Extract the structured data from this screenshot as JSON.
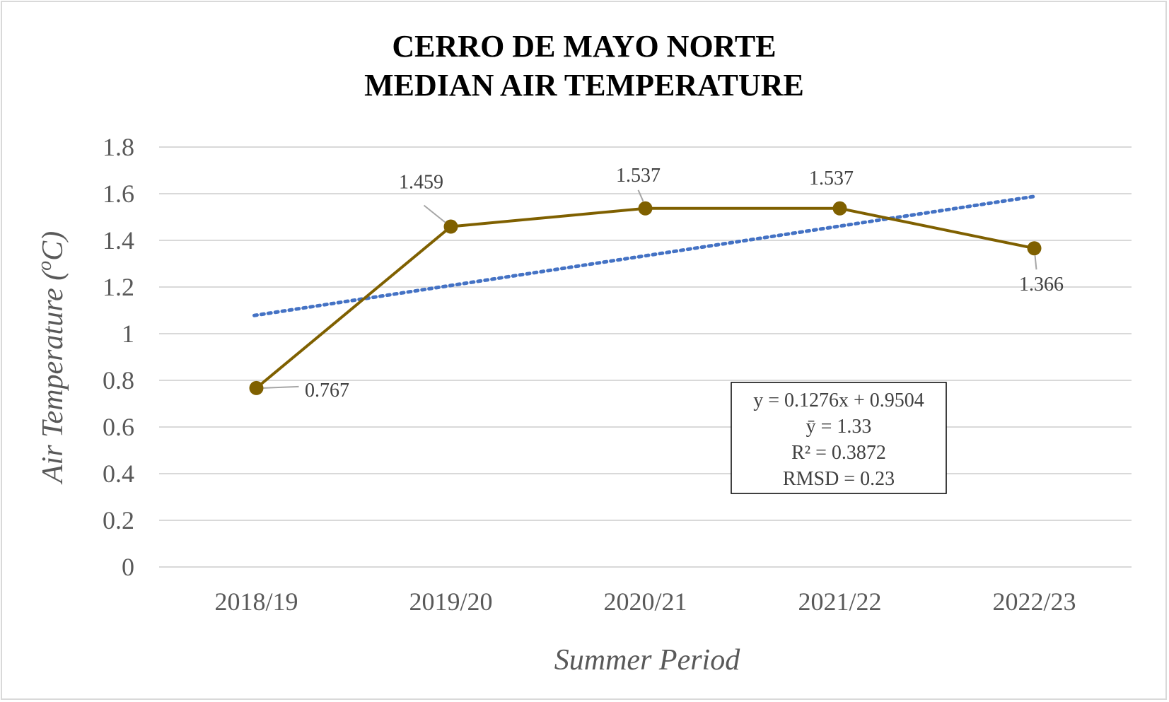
{
  "chart_data": {
    "type": "line",
    "title_line1": "CERRO DE MAYO NORTE",
    "title_line2": "MEDIAN AIR TEMPERATURE",
    "xlabel": "Summer Period",
    "ylabel_prefix": "Air Temperature (",
    "ylabel_super": "o",
    "ylabel_unit": "C)",
    "categories": [
      "2018/19",
      "2019/20",
      "2020/21",
      "2021/22",
      "2022/23"
    ],
    "series": [
      {
        "values": [
          0.767,
          1.459,
          1.537,
          1.537,
          1.366
        ],
        "color": "#7f6000"
      }
    ],
    "data_labels": [
      "0.767",
      "1.459",
      "1.537",
      "1.537",
      "1.366"
    ],
    "trendline": {
      "type": "linear",
      "style": "dotted",
      "color": "#4472c4",
      "slope": 0.1276,
      "intercept": 0.9504
    },
    "ylim": [
      0,
      1.8
    ],
    "yticks": [
      "0",
      "0.2",
      "0.4",
      "0.6",
      "0.8",
      "1",
      "1.2",
      "1.4",
      "1.6",
      "1.8"
    ],
    "ytick_values": [
      0,
      0.2,
      0.4,
      0.6,
      0.8,
      1,
      1.2,
      1.4,
      1.6,
      1.8
    ],
    "grid": true,
    "stats": {
      "equation": "y = 0.1276x + 0.9504",
      "mean": "ȳ = 1.33",
      "r2": "R² = 0.3872",
      "rmsd": "RMSD = 0.23"
    }
  }
}
